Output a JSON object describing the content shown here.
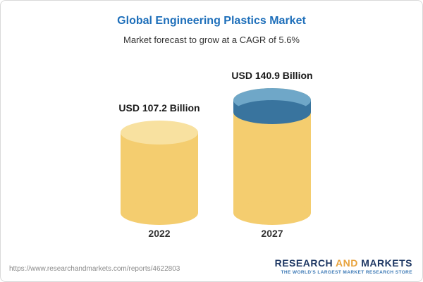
{
  "header": {
    "title": "Global Engineering Plastics Market",
    "subtitle": "Market forecast to grow at a CAGR of 5.6%"
  },
  "chart_data": {
    "type": "bar",
    "title": "Global Engineering Plastics Market",
    "subtitle": "Market forecast to grow at a CAGR of 5.6%",
    "categories": [
      "2022",
      "2027"
    ],
    "values": [
      107.2,
      140.9
    ],
    "value_labels": [
      "USD 107.2 Billion",
      "USD 140.9 Billion"
    ],
    "unit": "USD Billion",
    "cagr_percent": 5.6,
    "legend_position": "none",
    "grid": false,
    "colors": {
      "bar": "#f4cd6f",
      "bar_top": "#f8e1a0",
      "cap": "#39749e",
      "cap_top": "#6fa7c8",
      "title": "#1e6fba"
    }
  },
  "footer": {
    "url": "https://www.researchandmarkets.com/reports/4622803",
    "logo": {
      "part1": "RESEARCH ",
      "part2": "AND",
      "part3": " MARKETS",
      "tagline": "THE WORLD'S LARGEST MARKET RESEARCH STORE"
    }
  }
}
